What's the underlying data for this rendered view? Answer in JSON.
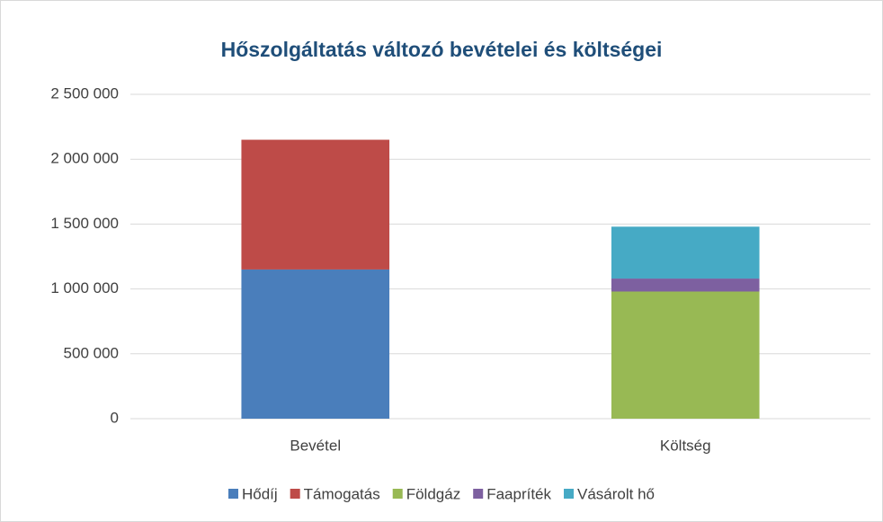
{
  "chart_data": {
    "type": "stacked_bar",
    "title": "Hőszolgáltatás változó bevételei és költségei",
    "categories": [
      "Bevétel",
      "Költség"
    ],
    "series": [
      {
        "name": "Hődíj",
        "color": "#4a7ebb",
        "values": [
          1150000,
          null
        ]
      },
      {
        "name": "Támogatás",
        "color": "#be4b48",
        "values": [
          1000000,
          null
        ]
      },
      {
        "name": "Földgáz",
        "color": "#98b954",
        "values": [
          null,
          980000
        ]
      },
      {
        "name": "Faapríték",
        "color": "#7d60a0",
        "values": [
          null,
          100000
        ]
      },
      {
        "name": "Vásárolt hő",
        "color": "#46aac5",
        "values": [
          null,
          400000
        ]
      }
    ],
    "ylim": [
      0,
      2500000
    ],
    "yticks": [
      0,
      {
        "value": 500000,
        "label": "500 000"
      },
      {
        "value": 1000000,
        "label": "1 000 000"
      },
      {
        "value": 1500000,
        "label": "1 500 000"
      },
      {
        "value": 2000000,
        "label": "2 000 000"
      },
      {
        "value": 2500000,
        "label": "2 500 000"
      }
    ],
    "grid": true,
    "legend": "bottom"
  }
}
